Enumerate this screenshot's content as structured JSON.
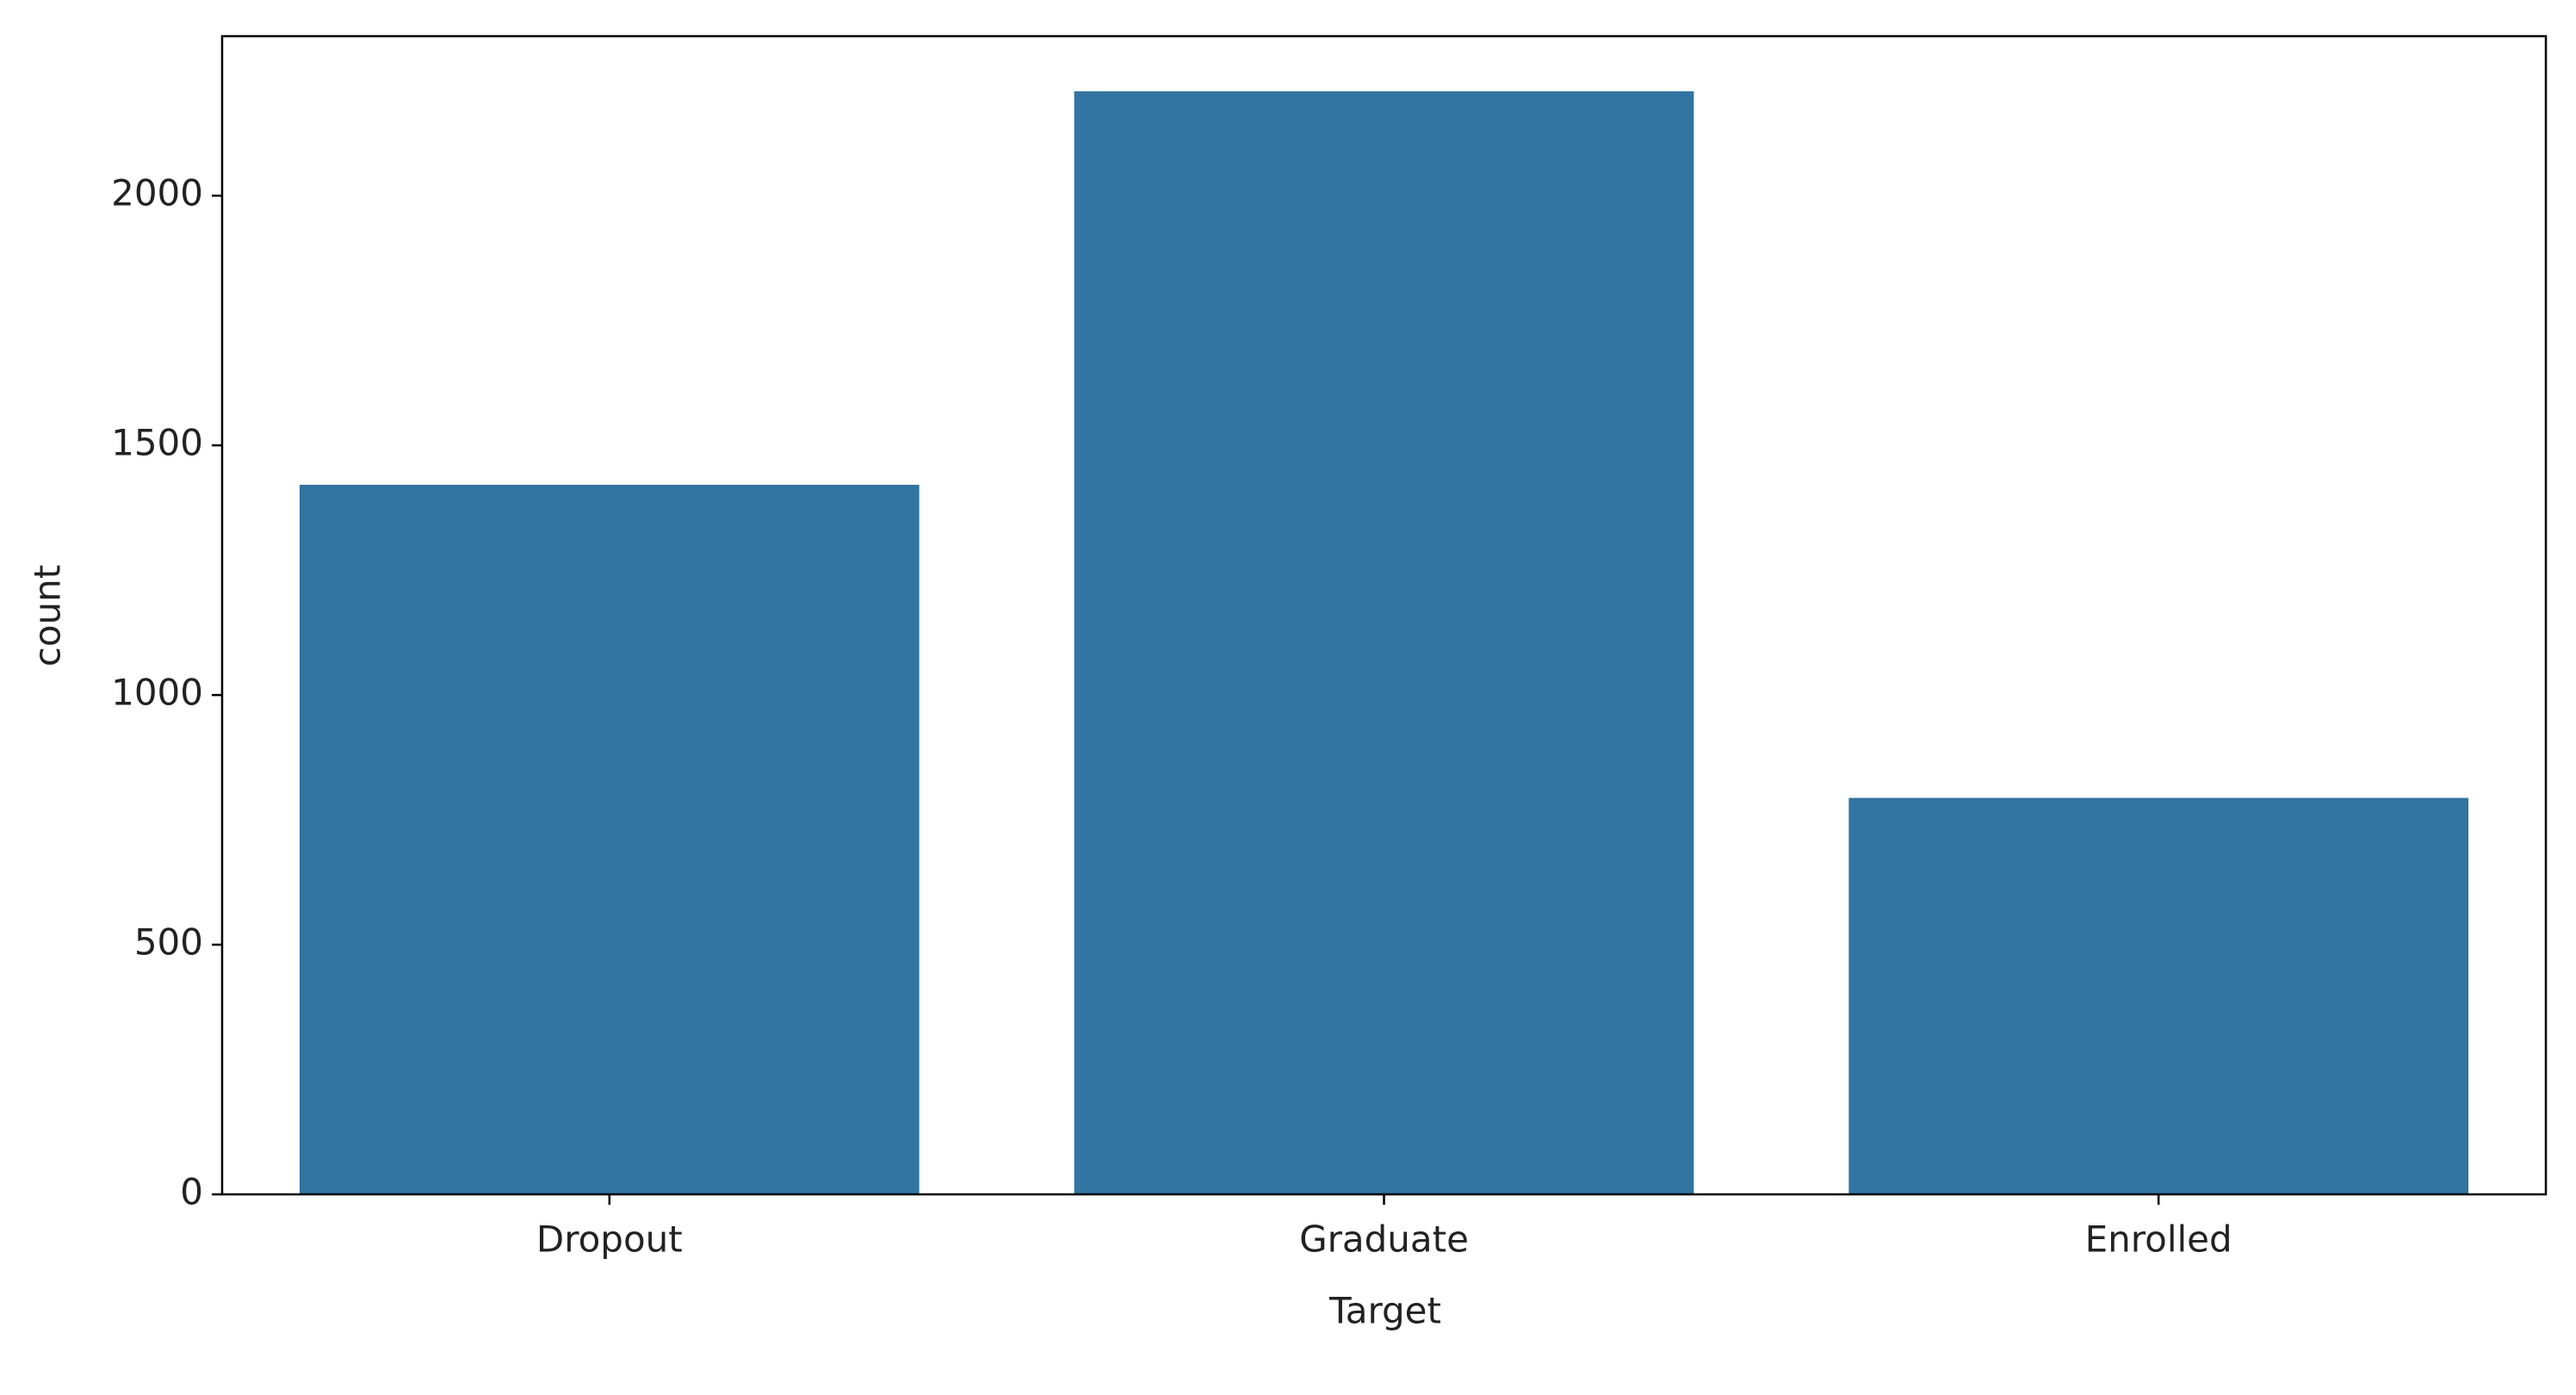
{
  "chart_data": {
    "type": "bar",
    "x_label": "Target",
    "y_label": "count",
    "categories": [
      "Dropout",
      "Graduate",
      "Enrolled"
    ],
    "values": [
      1421,
      2209,
      794
    ],
    "color": "#3274a1",
    "ylim": [
      0,
      2319.45
    ],
    "yticks": [
      0,
      500,
      1000,
      1500,
      2000
    ],
    "grid": false
  }
}
